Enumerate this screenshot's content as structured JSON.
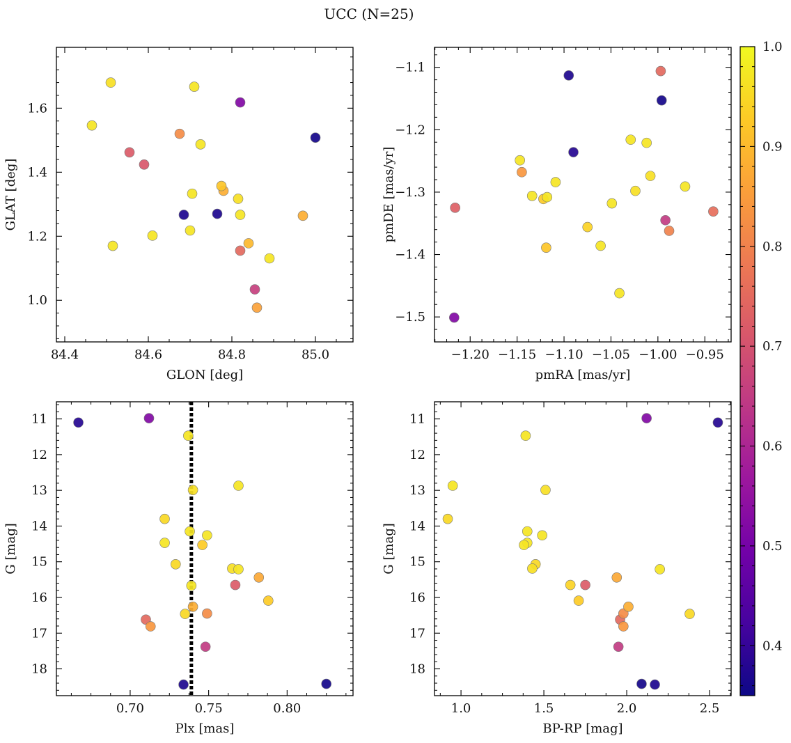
{
  "figure_title": "UCC (N=25)",
  "colorbar": {
    "range": [
      0.35,
      1.0
    ],
    "ticks": [
      0.4,
      0.5,
      0.6,
      0.7,
      0.8,
      0.9,
      1.0
    ],
    "tick_labels": [
      "0.4",
      "0.5",
      "0.6",
      "0.7",
      "0.8",
      "0.9",
      "1.0"
    ],
    "colormap": "plasma",
    "stops": [
      "#0d0887",
      "#46039f",
      "#7201a8",
      "#9c179e",
      "#bd3786",
      "#d8576b",
      "#ed7953",
      "#fb9f3a",
      "#fdca26",
      "#f0f921"
    ]
  },
  "chart_data": [
    {
      "type": "scatter",
      "xlabel": "GLON [deg]",
      "ylabel": "GLAT [deg]",
      "xlim": [
        84.38,
        85.09
      ],
      "ylim": [
        0.87,
        1.79
      ],
      "xticks": [
        84.4,
        84.6,
        84.8,
        85.0
      ],
      "xtick_labels": [
        "84.4",
        "84.6",
        "84.8",
        "85.0"
      ],
      "yticks": [
        1.0,
        1.2,
        1.4,
        1.6
      ],
      "ytick_labels": [
        "1.0",
        "1.2",
        "1.4",
        "1.6"
      ],
      "points": [
        {
          "x": 84.51,
          "y": 1.68,
          "c": 0.96
        },
        {
          "x": 84.71,
          "y": 1.667,
          "c": 0.97
        },
        {
          "x": 84.82,
          "y": 1.618,
          "c": 0.52
        },
        {
          "x": 84.465,
          "y": 1.546,
          "c": 0.97
        },
        {
          "x": 84.675,
          "y": 1.52,
          "c": 0.82
        },
        {
          "x": 84.725,
          "y": 1.487,
          "c": 0.97
        },
        {
          "x": 85.0,
          "y": 1.508,
          "c": 0.36
        },
        {
          "x": 84.555,
          "y": 1.462,
          "c": 0.72
        },
        {
          "x": 84.59,
          "y": 1.424,
          "c": 0.71
        },
        {
          "x": 84.775,
          "y": 1.357,
          "c": 0.92
        },
        {
          "x": 84.78,
          "y": 1.342,
          "c": 0.88
        },
        {
          "x": 84.705,
          "y": 1.333,
          "c": 0.97
        },
        {
          "x": 84.815,
          "y": 1.317,
          "c": 0.96
        },
        {
          "x": 84.685,
          "y": 1.267,
          "c": 0.37
        },
        {
          "x": 84.765,
          "y": 1.27,
          "c": 0.37
        },
        {
          "x": 84.82,
          "y": 1.267,
          "c": 0.97
        },
        {
          "x": 84.97,
          "y": 1.264,
          "c": 0.88
        },
        {
          "x": 84.7,
          "y": 1.218,
          "c": 0.97
        },
        {
          "x": 84.61,
          "y": 1.202,
          "c": 0.97
        },
        {
          "x": 84.515,
          "y": 1.17,
          "c": 0.97
        },
        {
          "x": 84.84,
          "y": 1.178,
          "c": 0.9
        },
        {
          "x": 84.82,
          "y": 1.155,
          "c": 0.75
        },
        {
          "x": 84.89,
          "y": 1.131,
          "c": 0.97
        },
        {
          "x": 84.855,
          "y": 1.034,
          "c": 0.66
        },
        {
          "x": 84.86,
          "y": 0.977,
          "c": 0.86
        }
      ]
    },
    {
      "type": "scatter",
      "xlabel": "pmRA [mas/yr]",
      "ylabel": "pmDE [mas/yr]",
      "xlim": [
        -1.238,
        -0.922
      ],
      "ylim": [
        -1.54,
        -1.068
      ],
      "xticks": [
        -1.2,
        -1.15,
        -1.1,
        -1.05,
        -1.0,
        -0.95
      ],
      "xtick_labels": [
        "−1.20",
        "−1.15",
        "−1.10",
        "−1.05",
        "−1.00",
        "−0.95"
      ],
      "yticks": [
        -1.5,
        -1.4,
        -1.3,
        -1.2,
        -1.1
      ],
      "ytick_labels": [
        "−1.5",
        "−1.4",
        "−1.3",
        "−1.2",
        "−1.1"
      ],
      "points": [
        {
          "x": -1.095,
          "y": -1.113,
          "c": 0.37
        },
        {
          "x": -0.997,
          "y": -1.106,
          "c": 0.75
        },
        {
          "x": -0.996,
          "y": -1.153,
          "c": 0.36
        },
        {
          "x": -1.09,
          "y": -1.236,
          "c": 0.38
        },
        {
          "x": -1.029,
          "y": -1.216,
          "c": 0.97
        },
        {
          "x": -1.012,
          "y": -1.221,
          "c": 0.97
        },
        {
          "x": -1.147,
          "y": -1.249,
          "c": 0.97
        },
        {
          "x": -1.145,
          "y": -1.268,
          "c": 0.84
        },
        {
          "x": -1.109,
          "y": -1.284,
          "c": 0.97
        },
        {
          "x": -1.024,
          "y": -1.298,
          "c": 0.96
        },
        {
          "x": -1.008,
          "y": -1.274,
          "c": 0.96
        },
        {
          "x": -0.971,
          "y": -1.291,
          "c": 0.97
        },
        {
          "x": -1.134,
          "y": -1.306,
          "c": 0.97
        },
        {
          "x": -1.122,
          "y": -1.311,
          "c": 0.93
        },
        {
          "x": -1.118,
          "y": -1.308,
          "c": 0.97
        },
        {
          "x": -1.049,
          "y": -1.318,
          "c": 0.97
        },
        {
          "x": -1.216,
          "y": -1.325,
          "c": 0.73
        },
        {
          "x": -0.941,
          "y": -1.331,
          "c": 0.76
        },
        {
          "x": -0.992,
          "y": -1.345,
          "c": 0.65
        },
        {
          "x": -0.988,
          "y": -1.362,
          "c": 0.8
        },
        {
          "x": -1.075,
          "y": -1.356,
          "c": 0.94
        },
        {
          "x": -1.119,
          "y": -1.389,
          "c": 0.92
        },
        {
          "x": -1.061,
          "y": -1.386,
          "c": 0.97
        },
        {
          "x": -1.041,
          "y": -1.462,
          "c": 0.97
        },
        {
          "x": -1.217,
          "y": -1.501,
          "c": 0.52
        }
      ]
    },
    {
      "type": "scatter",
      "xlabel": "Plx [mas]",
      "ylabel": "G [mag]",
      "xlim": [
        0.653,
        0.842
      ],
      "ylim": [
        18.75,
        10.52
      ],
      "xticks": [
        0.7,
        0.75,
        0.8
      ],
      "xtick_labels": [
        "0.70",
        "0.75",
        "0.80"
      ],
      "yticks": [
        11,
        12,
        13,
        14,
        15,
        16,
        17,
        18
      ],
      "ytick_labels": [
        "11",
        "12",
        "13",
        "14",
        "15",
        "16",
        "17",
        "18"
      ],
      "vline": {
        "x": 0.739,
        "style": "dotted",
        "color": "#000000"
      },
      "points": [
        {
          "x": 0.667,
          "y": 11.1,
          "c": 0.38
        },
        {
          "x": 0.712,
          "y": 10.98,
          "c": 0.52
        },
        {
          "x": 0.737,
          "y": 11.47,
          "c": 0.97
        },
        {
          "x": 0.769,
          "y": 12.87,
          "c": 0.97
        },
        {
          "x": 0.74,
          "y": 12.99,
          "c": 0.96
        },
        {
          "x": 0.722,
          "y": 13.8,
          "c": 0.95
        },
        {
          "x": 0.738,
          "y": 14.15,
          "c": 0.97
        },
        {
          "x": 0.749,
          "y": 14.26,
          "c": 0.97
        },
        {
          "x": 0.722,
          "y": 14.47,
          "c": 0.97
        },
        {
          "x": 0.746,
          "y": 14.53,
          "c": 0.93
        },
        {
          "x": 0.729,
          "y": 15.07,
          "c": 0.95
        },
        {
          "x": 0.765,
          "y": 15.19,
          "c": 0.96
        },
        {
          "x": 0.769,
          "y": 15.21,
          "c": 0.97
        },
        {
          "x": 0.782,
          "y": 15.44,
          "c": 0.87
        },
        {
          "x": 0.767,
          "y": 15.65,
          "c": 0.72
        },
        {
          "x": 0.739,
          "y": 15.67,
          "c": 0.97
        },
        {
          "x": 0.788,
          "y": 16.09,
          "c": 0.93
        },
        {
          "x": 0.74,
          "y": 16.26,
          "c": 0.88
        },
        {
          "x": 0.735,
          "y": 16.46,
          "c": 0.95
        },
        {
          "x": 0.749,
          "y": 16.45,
          "c": 0.82
        },
        {
          "x": 0.71,
          "y": 16.62,
          "c": 0.75
        },
        {
          "x": 0.713,
          "y": 16.81,
          "c": 0.84
        },
        {
          "x": 0.748,
          "y": 17.38,
          "c": 0.65
        },
        {
          "x": 0.734,
          "y": 18.44,
          "c": 0.37
        },
        {
          "x": 0.825,
          "y": 18.42,
          "c": 0.36
        }
      ]
    },
    {
      "type": "scatter",
      "xlabel": "BP-RP [mag]",
      "ylabel": "G [mag]",
      "xlim": [
        0.84,
        2.63
      ],
      "ylim": [
        18.75,
        10.52
      ],
      "xticks": [
        1.0,
        1.5,
        2.0,
        2.5
      ],
      "xtick_labels": [
        "1.0",
        "1.5",
        "2.0",
        "2.5"
      ],
      "yticks": [
        11,
        12,
        13,
        14,
        15,
        16,
        17,
        18
      ],
      "ytick_labels": [
        "11",
        "12",
        "13",
        "14",
        "15",
        "16",
        "17",
        "18"
      ],
      "points": [
        {
          "x": 2.12,
          "y": 10.98,
          "c": 0.52
        },
        {
          "x": 2.55,
          "y": 11.1,
          "c": 0.38
        },
        {
          "x": 1.39,
          "y": 11.47,
          "c": 0.97
        },
        {
          "x": 0.95,
          "y": 12.87,
          "c": 0.97
        },
        {
          "x": 1.51,
          "y": 12.99,
          "c": 0.96
        },
        {
          "x": 0.92,
          "y": 13.8,
          "c": 0.95
        },
        {
          "x": 1.4,
          "y": 14.15,
          "c": 0.97
        },
        {
          "x": 1.49,
          "y": 14.26,
          "c": 0.97
        },
        {
          "x": 1.4,
          "y": 14.47,
          "c": 0.97
        },
        {
          "x": 1.38,
          "y": 14.53,
          "c": 0.97
        },
        {
          "x": 1.45,
          "y": 15.07,
          "c": 0.95
        },
        {
          "x": 1.43,
          "y": 15.19,
          "c": 0.96
        },
        {
          "x": 2.2,
          "y": 15.21,
          "c": 0.97
        },
        {
          "x": 1.94,
          "y": 15.44,
          "c": 0.87
        },
        {
          "x": 1.66,
          "y": 15.65,
          "c": 0.94
        },
        {
          "x": 1.75,
          "y": 15.65,
          "c": 0.72
        },
        {
          "x": 1.71,
          "y": 16.09,
          "c": 0.93
        },
        {
          "x": 2.01,
          "y": 16.26,
          "c": 0.88
        },
        {
          "x": 1.98,
          "y": 16.45,
          "c": 0.82
        },
        {
          "x": 2.38,
          "y": 16.46,
          "c": 0.95
        },
        {
          "x": 1.96,
          "y": 16.62,
          "c": 0.75
        },
        {
          "x": 1.98,
          "y": 16.81,
          "c": 0.84
        },
        {
          "x": 1.95,
          "y": 17.38,
          "c": 0.65
        },
        {
          "x": 2.09,
          "y": 18.42,
          "c": 0.36
        },
        {
          "x": 2.17,
          "y": 18.44,
          "c": 0.37
        }
      ]
    }
  ]
}
